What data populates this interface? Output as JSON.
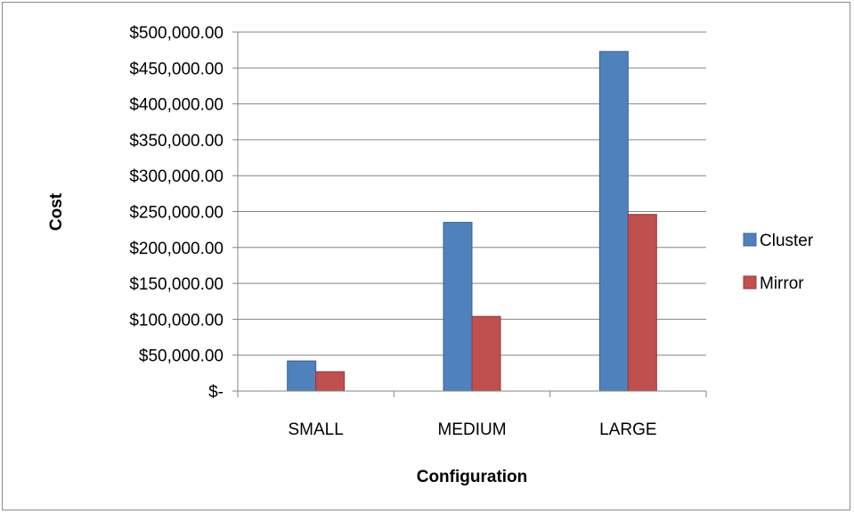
{
  "chart_data": {
    "type": "bar",
    "categories": [
      "SMALL",
      "MEDIUM",
      "LARGE"
    ],
    "series": [
      {
        "name": "Cluster",
        "values": [
          42000,
          235000,
          473000
        ],
        "color": "#4f81bd"
      },
      {
        "name": "Mirror",
        "values": [
          27000,
          104000,
          246000
        ],
        "color": "#c0504d"
      }
    ],
    "xlabel": "Configuration",
    "ylabel": "Cost",
    "ylim": [
      0,
      500000
    ],
    "yticks": [
      0,
      50000,
      100000,
      150000,
      200000,
      250000,
      300000,
      350000,
      400000,
      450000,
      500000
    ],
    "ytick_labels": [
      "$-",
      "$50,000.00",
      "$100,000.00",
      "$150,000.00",
      "$200,000.00",
      "$250,000.00",
      "$300,000.00",
      "$350,000.00",
      "$400,000.00",
      "$450,000.00",
      "$500,000.00"
    ],
    "grid": true,
    "legend_position": "right"
  }
}
